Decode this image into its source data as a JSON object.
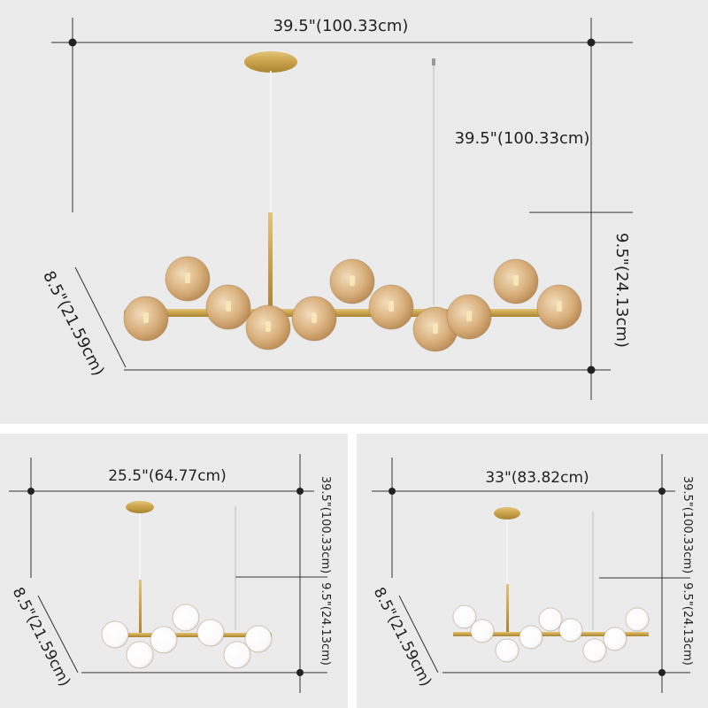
{
  "colors": {
    "background": "#ebebeb",
    "gold": "#c9a24a",
    "amber_glass": "#d8b07a",
    "white_glass": "#ffffff",
    "lines": "#333333"
  },
  "main_view": {
    "width_label": "39.5\"(100.33cm)",
    "height_label": "39.5\"(100.33cm)",
    "fixture_height_label": "9.5\"(24.13cm)",
    "depth_label": "8.5\"(21.59cm)"
  },
  "small_view": {
    "width_label": "25.5\"(64.77cm)",
    "height_label": "39.5\"(100.33cm)",
    "fixture_height_label": "9.5\"(24.13cm)",
    "depth_label": "8.5\"(21.59cm)"
  },
  "medium_view": {
    "width_label": "33\"(83.82cm)",
    "height_label": "39.5\"(100.33cm)",
    "fixture_height_label": "9.5\"(24.13cm)",
    "depth_label": "8.5\"(21.59cm)"
  }
}
